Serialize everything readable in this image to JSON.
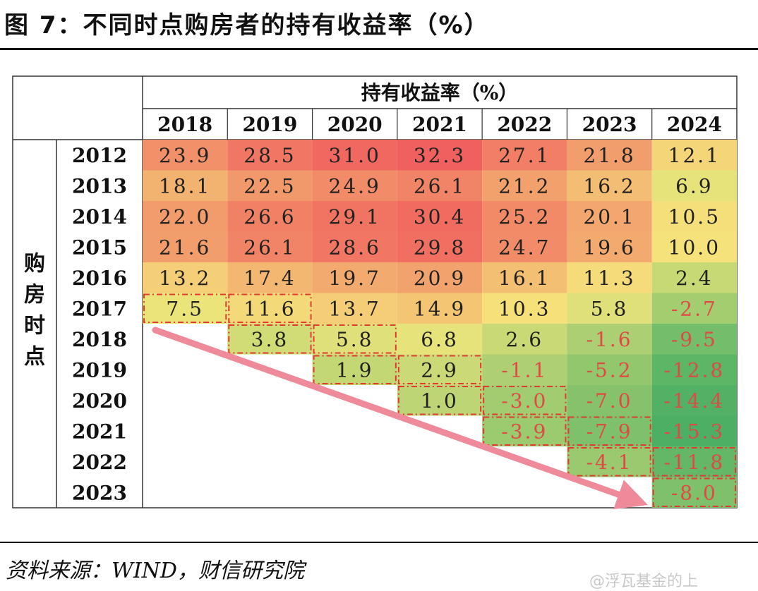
{
  "figure": {
    "title": "图 7：不同时点购房者的持有收益率（%）",
    "source": "资料来源：WIND，财信研究院",
    "watermark": "@浮瓦基金的上"
  },
  "chart_data": {
    "type": "heatmap",
    "header_title": "持有收益率（%）",
    "row_axis_label": "购房时点",
    "columns": [
      "2018",
      "2019",
      "2020",
      "2021",
      "2022",
      "2023",
      "2024"
    ],
    "rows": [
      "2012",
      "2013",
      "2014",
      "2015",
      "2016",
      "2017",
      "2018",
      "2019",
      "2020",
      "2021",
      "2022",
      "2023"
    ],
    "values": [
      [
        "23.9",
        "28.5",
        "31.0",
        "32.3",
        "27.1",
        "21.8",
        "12.1"
      ],
      [
        "18.1",
        "22.5",
        "24.9",
        "26.1",
        "21.2",
        "16.2",
        "6.9"
      ],
      [
        "22.0",
        "26.6",
        "29.1",
        "30.4",
        "25.2",
        "20.1",
        "10.5"
      ],
      [
        "21.6",
        "26.1",
        "28.6",
        "29.8",
        "24.7",
        "19.6",
        "10.0"
      ],
      [
        "13.2",
        "17.4",
        "19.7",
        "20.9",
        "16.1",
        "11.3",
        "2.4"
      ],
      [
        "7.5",
        "11.6",
        "13.7",
        "14.9",
        "10.3",
        "5.8",
        "-2.7"
      ],
      [
        null,
        "3.8",
        "5.8",
        "6.8",
        "2.6",
        "-1.6",
        "-9.5"
      ],
      [
        null,
        null,
        "1.9",
        "2.9",
        "-1.1",
        "-5.2",
        "-12.8"
      ],
      [
        null,
        null,
        null,
        "1.0",
        "-3.0",
        "-7.0",
        "-14.4"
      ],
      [
        null,
        null,
        null,
        null,
        "-3.9",
        "-7.9",
        "-15.3"
      ],
      [
        null,
        null,
        null,
        null,
        null,
        "-4.1",
        "-11.8"
      ],
      [
        null,
        null,
        null,
        null,
        null,
        null,
        "-8.0"
      ]
    ],
    "color_scale": {
      "high": "#f0605e",
      "mid": "#f5e87c",
      "low": "#4caf64"
    },
    "negative_text_color": "#e04a44",
    "highlight_border_color": "#e03a32",
    "arrow_color": "#ef8a9a"
  }
}
